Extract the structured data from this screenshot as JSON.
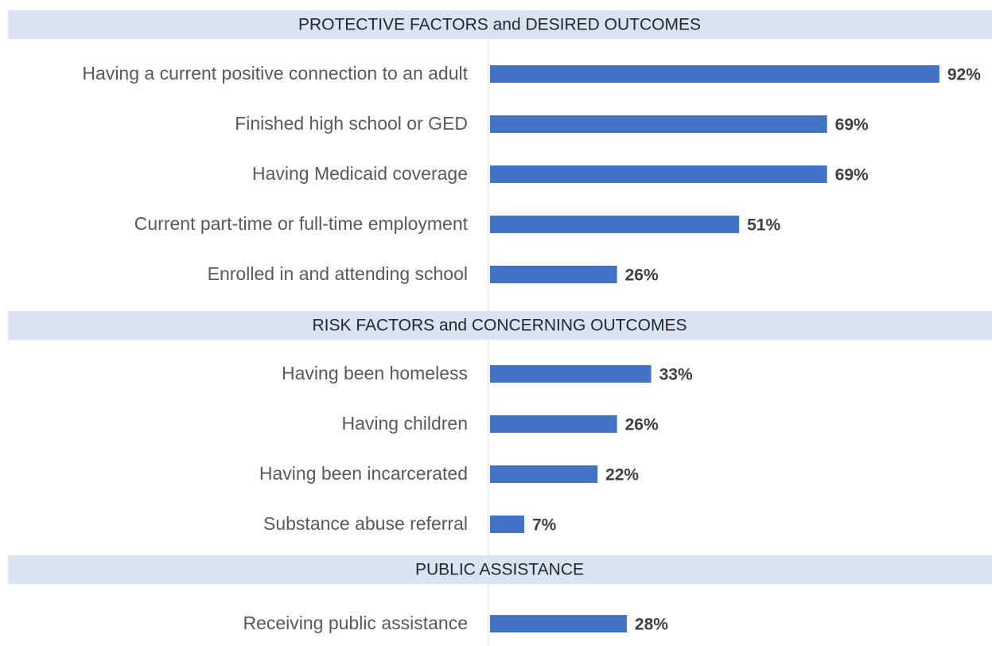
{
  "chart_data": {
    "type": "bar",
    "color": "#4472c4",
    "groups": [
      {
        "title": "PROTECTIVE FACTORS and DESIRED OUTCOMES",
        "categories": [
          "Having a current positive connection to an adult",
          "Finished high school or GED",
          "Having Medicaid coverage",
          "Current part-time or full-time employment",
          "Enrolled in and attending school"
        ],
        "values": [
          92,
          69,
          69,
          51,
          26
        ],
        "value_labels": [
          "92%",
          "69%",
          "69%",
          "51%",
          "26%"
        ]
      },
      {
        "title": "RISK FACTORS and CONCERNING OUTCOMES",
        "categories": [
          "Having been homeless",
          "Having children",
          "Having been incarcerated",
          "Substance abuse referral"
        ],
        "values": [
          33,
          26,
          22,
          7
        ],
        "value_labels": [
          "33%",
          "26%",
          "22%",
          "7%"
        ]
      },
      {
        "title": "PUBLIC ASSISTANCE",
        "categories": [
          "Receiving public assistance"
        ],
        "values": [
          28
        ],
        "value_labels": [
          "28%"
        ]
      }
    ]
  }
}
